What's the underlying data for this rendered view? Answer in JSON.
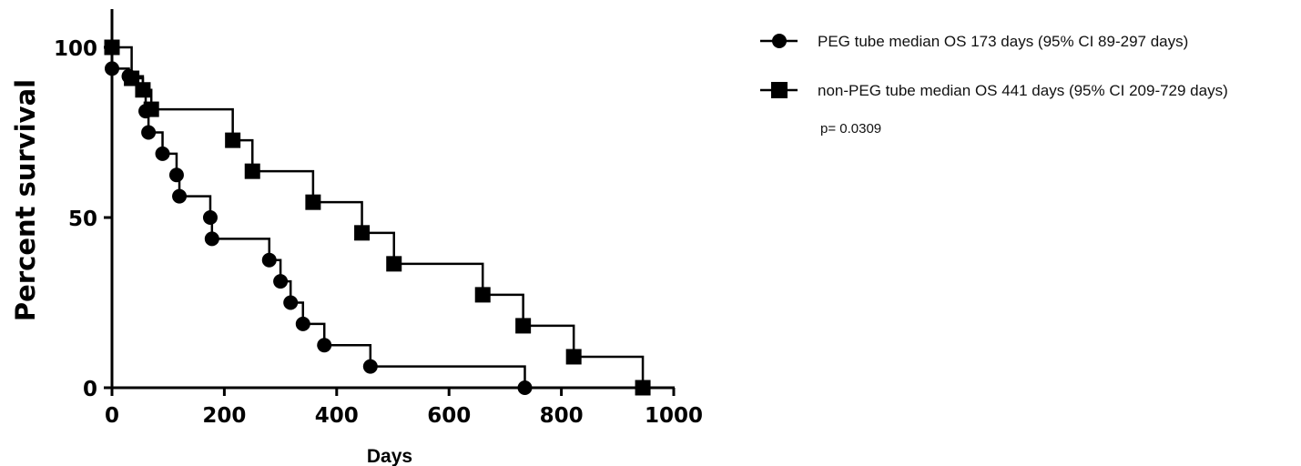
{
  "chart_data": {
    "type": "line",
    "subtype": "kaplan-meier step",
    "xlabel": "Days",
    "ylabel": "Percent survival",
    "xlim": [
      0,
      1000
    ],
    "ylim": [
      0,
      100
    ],
    "x_ticks": [
      0,
      200,
      400,
      600,
      800,
      1000
    ],
    "y_ticks": [
      0,
      50,
      100
    ],
    "grid": false,
    "legend_position": "right",
    "annotation": "p= 0.0309",
    "series": [
      {
        "name": "PEG tube median OS 173 days (95% CI 89-297 days)",
        "marker": "circle",
        "x": [
          0,
          30,
          55,
          60,
          65,
          90,
          115,
          120,
          175,
          178,
          280,
          300,
          318,
          340,
          378,
          460,
          735
        ],
        "y": [
          93.75,
          91.5,
          87.5,
          81.25,
          75,
          68.75,
          62.5,
          56.25,
          50,
          43.75,
          37.5,
          31.25,
          25,
          18.75,
          12.5,
          6.25,
          0
        ]
      },
      {
        "name": "non-PEG tube median OS 441 days (95% CI 209-729 days)",
        "marker": "square",
        "x": [
          0,
          35,
          55,
          70,
          215,
          250,
          358,
          445,
          502,
          660,
          732,
          822,
          945
        ],
        "y": [
          100,
          90.9,
          87.5,
          81.8,
          72.7,
          63.6,
          54.5,
          45.5,
          36.4,
          27.3,
          18.2,
          9.1,
          0
        ]
      }
    ]
  }
}
